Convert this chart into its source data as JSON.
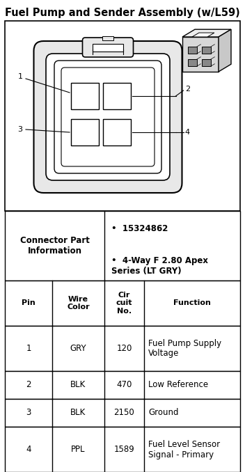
{
  "title": "Fuel Pump and Sender Assembly (w/L59)",
  "title_fontsize": 10.5,
  "connector_part_label": "Connector Part\nInformation",
  "connector_part_bullet1": "15324862",
  "connector_part_bullet2": "4-Way F 2.80 Apex\nSeries (LT GRY)",
  "table_headers": [
    "Pin",
    "Wire\nColor",
    "Cir\ncuit\nNo.",
    "Function"
  ],
  "table_rows": [
    [
      "1",
      "GRY",
      "120",
      "Fuel Pump Supply\nVoltage"
    ],
    [
      "2",
      "BLK",
      "470",
      "Low Reference"
    ],
    [
      "3",
      "BLK",
      "2150",
      "Ground"
    ],
    [
      "4",
      "PPL",
      "1589",
      "Fuel Level Sensor\nSignal - Primary"
    ]
  ],
  "bg_color": "#ffffff",
  "border_color": "#000000",
  "text_color": "#000000",
  "fig_width": 3.52,
  "fig_height": 6.78,
  "dpi": 100
}
